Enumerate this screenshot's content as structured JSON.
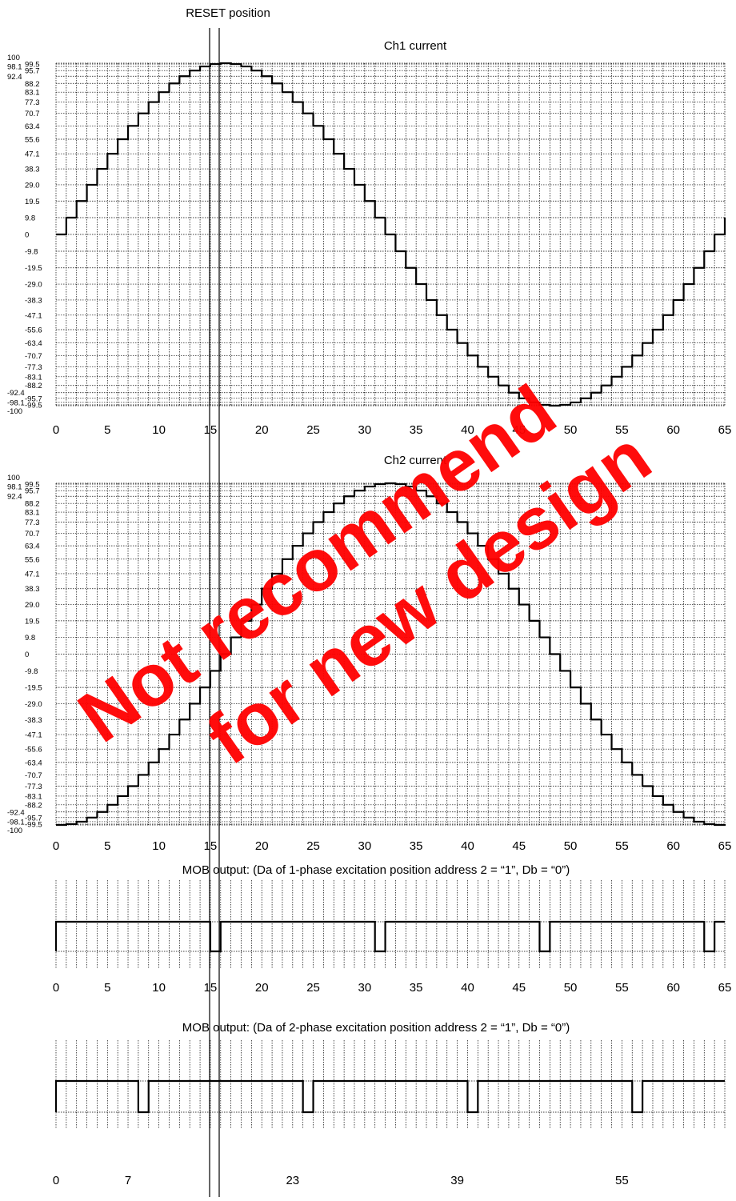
{
  "reset_label": "RESET position",
  "watermark": {
    "line1": "Not recommend",
    "line2": "for new design",
    "color": "#ff0000"
  },
  "chart_data": [
    {
      "type": "line",
      "title": "Ch1 current",
      "y_ticks_left": [
        "100",
        "98.1",
        "92.4",
        "-92.4",
        "-98.1",
        "-100"
      ],
      "y_ticks_right": [
        "99.5",
        "95.7",
        "88.2",
        "83.1",
        "77.3",
        "70.7",
        "63.4",
        "55.6",
        "47.1",
        "38.3",
        "29.0",
        "19.5",
        "9.8",
        "0",
        "-9.8",
        "-19.5",
        "-29.0",
        "-38.3",
        "-47.1",
        "-55.6",
        "-63.4",
        "-70.7",
        "-77.3",
        "-83.1",
        "-88.2",
        "-95.7",
        "-99.5"
      ],
      "x_ticks": [
        "0",
        "5",
        "10",
        "15",
        "20",
        "25",
        "30",
        "35",
        "40",
        "45",
        "50",
        "55",
        "60",
        "65"
      ],
      "xlim": [
        0,
        65
      ],
      "ylim": [
        -100,
        100
      ],
      "grid": true,
      "series": [
        {
          "values": [
            0,
            9.8,
            19.5,
            29.0,
            38.3,
            47.1,
            55.6,
            63.4,
            70.7,
            77.3,
            83.1,
            88.2,
            92.4,
            95.7,
            98.1,
            99.5,
            100,
            99.5,
            98.1,
            95.7,
            92.4,
            88.2,
            83.1,
            77.3,
            70.7,
            63.4,
            55.6,
            47.1,
            38.3,
            29.0,
            19.5,
            9.8,
            0,
            -9.8,
            -19.5,
            -29.0,
            -38.3,
            -47.1,
            -55.6,
            -63.4,
            -70.7,
            -77.3,
            -83.1,
            -88.2,
            -92.4,
            -95.7,
            -98.1,
            -99.5,
            -100,
            -99.5,
            -98.1,
            -95.7,
            -92.4,
            -88.2,
            -83.1,
            -77.3,
            -70.7,
            -63.4,
            -55.6,
            -47.1,
            -38.3,
            -29.0,
            -19.5,
            -9.8,
            0,
            9.8,
            19.5
          ]
        }
      ]
    },
    {
      "type": "line",
      "title": "Ch2 current",
      "y_ticks_left": [
        "100",
        "98.1",
        "92.4",
        "-92.4",
        "-98.1",
        "-100"
      ],
      "y_ticks_right": [
        "99.5",
        "95.7",
        "88.2",
        "83.1",
        "77.3",
        "70.7",
        "63.4",
        "55.6",
        "47.1",
        "38.3",
        "29.0",
        "19.5",
        "9.8",
        "0",
        "-9.8",
        "-19.5",
        "-29.0",
        "-38.3",
        "-47.1",
        "-55.6",
        "-63.4",
        "-70.7",
        "-77.3",
        "-83.1",
        "-88.2",
        "-95.7",
        "-99.5"
      ],
      "x_ticks": [
        "0",
        "5",
        "10",
        "15",
        "20",
        "25",
        "30",
        "35",
        "40",
        "45",
        "50",
        "55",
        "60",
        "65"
      ],
      "xlim": [
        0,
        65
      ],
      "ylim": [
        -100,
        100
      ],
      "grid": true,
      "series": [
        {
          "values": [
            -100,
            -99.5,
            -98.1,
            -95.7,
            -92.4,
            -88.2,
            -83.1,
            -77.3,
            -70.7,
            -63.4,
            -55.6,
            -47.1,
            -38.3,
            -29.0,
            -19.5,
            -9.8,
            0,
            9.8,
            19.5,
            29.0,
            38.3,
            47.1,
            55.6,
            63.4,
            70.7,
            77.3,
            83.1,
            88.2,
            92.4,
            95.7,
            98.1,
            99.5,
            100,
            99.5,
            98.1,
            95.7,
            92.4,
            88.2,
            83.1,
            77.3,
            70.7,
            63.4,
            55.6,
            47.1,
            38.3,
            29.0,
            19.5,
            9.8,
            0,
            -9.8,
            -19.5,
            -29.0,
            -38.3,
            -47.1,
            -55.6,
            -63.4,
            -70.7,
            -77.3,
            -83.1,
            -88.2,
            -92.4,
            -95.7,
            -98.1,
            -99.5,
            -100,
            -99.5
          ]
        }
      ]
    },
    {
      "type": "line",
      "title": "MOB output: (Da of 1-phase excitation position address 2 = “1”, Db = “0”)",
      "x_ticks": [
        "0",
        "5",
        "10",
        "15",
        "20",
        "25",
        "30",
        "35",
        "40",
        "45",
        "50",
        "55",
        "60",
        "65"
      ],
      "xlim": [
        0,
        65
      ],
      "ylim": [
        0,
        1
      ],
      "grid": true,
      "series": [
        {
          "low_intervals": [
            [
              15,
              16
            ],
            [
              31,
              32
            ],
            [
              47,
              48
            ],
            [
              63,
              64
            ]
          ]
        }
      ]
    },
    {
      "type": "line",
      "title": "MOB output: (Da of 2-phase excitation position address 2 = “1”, Db = “0”)",
      "x_ticks": [
        "0",
        "7",
        "23",
        "39",
        "55"
      ],
      "xlim": [
        0,
        65
      ],
      "ylim": [
        0,
        1
      ],
      "grid": true,
      "series": [
        {
          "low_intervals": [
            [
              8,
              9
            ],
            [
              24,
              25
            ],
            [
              40,
              41
            ],
            [
              56,
              57
            ]
          ]
        }
      ]
    }
  ]
}
